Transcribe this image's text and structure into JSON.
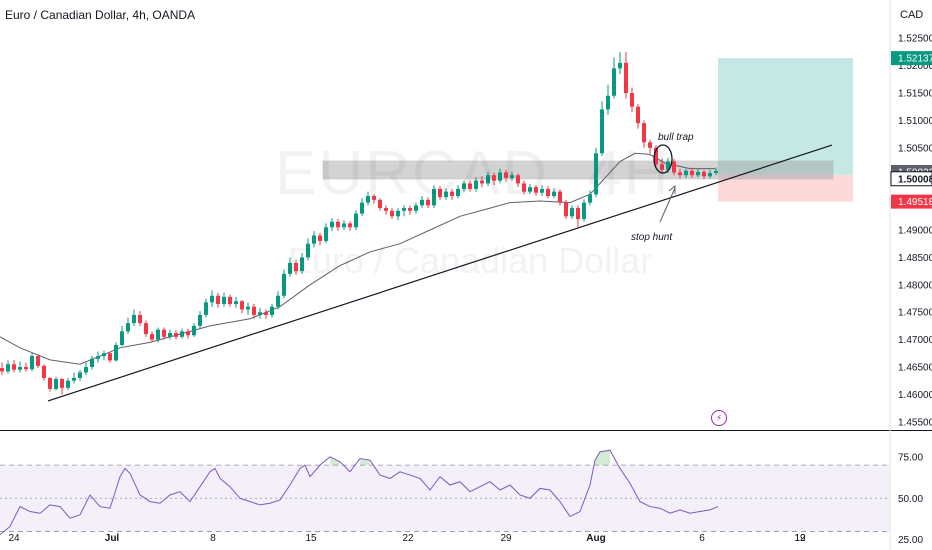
{
  "header": {
    "title": "Euro / Canadian Dollar, 4h, OANDA",
    "currency": "CAD"
  },
  "watermark": {
    "symbol": "EURCAD, 4H",
    "name": "Euro / Canadian Dollar"
  },
  "price_tags": [
    {
      "value": "1.52137",
      "color": "#089981"
    },
    {
      "value": "1.50022",
      "color": "#5d606b"
    },
    {
      "value": "1.50008",
      "color": "#131722"
    },
    {
      "value": "1.49518",
      "color": "#f23645"
    }
  ],
  "annotations": {
    "bull_trap": "bull trap",
    "stop_hunt": "stop hunt"
  },
  "colors": {
    "up": "#089981",
    "down": "#f23645",
    "ma": "#5d606b",
    "rsi": "#7e57c2",
    "target_zone": "#b2e0dc",
    "stop_zone": "#fcd0d0"
  },
  "icons": {
    "lightning": "lightning-icon"
  },
  "chart_data": [
    {
      "type": "candlestick",
      "title": "Euro / Canadian Dollar, 4h, OANDA",
      "y_axis_ticks": [
        "1.52500",
        "1.52000",
        "1.51500",
        "1.51000",
        "1.50500",
        "1.50000",
        "1.49500",
        "1.49000",
        "1.48500",
        "1.48000",
        "1.47500",
        "1.47000",
        "1.46500",
        "1.46000",
        "1.45500"
      ],
      "x_axis_ticks": [
        "24",
        "Jul",
        "8",
        "15",
        "22",
        "29",
        "Aug",
        "6",
        "12",
        "19"
      ],
      "ylim": [
        1.4535,
        1.5265
      ],
      "moving_average": [
        [
          0,
          1.4705
        ],
        [
          20,
          1.4685
        ],
        [
          50,
          1.4663
        ],
        [
          80,
          1.4655
        ],
        [
          100,
          1.467
        ],
        [
          120,
          1.4685
        ],
        [
          150,
          1.4695
        ],
        [
          180,
          1.471
        ],
        [
          210,
          1.4725
        ],
        [
          250,
          1.4738
        ],
        [
          280,
          1.476
        ],
        [
          310,
          1.48
        ],
        [
          340,
          1.4835
        ],
        [
          370,
          1.486
        ],
        [
          400,
          1.4875
        ],
        [
          430,
          1.49
        ],
        [
          460,
          1.4925
        ],
        [
          490,
          1.494
        ],
        [
          510,
          1.495
        ],
        [
          540,
          1.4953
        ],
        [
          570,
          1.495
        ],
        [
          590,
          1.4965
        ],
        [
          605,
          1.4995
        ],
        [
          620,
          1.5025
        ],
        [
          635,
          1.504
        ],
        [
          650,
          1.5038
        ],
        [
          665,
          1.5022
        ],
        [
          690,
          1.5012
        ],
        [
          715,
          1.5012
        ]
      ],
      "trendline": [
        [
          48,
          1.4588
        ],
        [
          832,
          1.5055
        ]
      ],
      "resistance_zone": {
        "y_low": 1.4993,
        "y_high": 1.5026
      },
      "position": {
        "entry": 1.50008,
        "target": 1.52137,
        "stop": 1.49518
      },
      "candles": [
        [
          0,
          1.4648,
          1.4642,
          1.4658,
          1.4635
        ],
        [
          6,
          1.4642,
          1.4655,
          1.4662,
          1.4638
        ],
        [
          12,
          1.4655,
          1.4645,
          1.4663,
          1.464
        ],
        [
          18,
          1.4645,
          1.465,
          1.466,
          1.464
        ],
        [
          24,
          1.465,
          1.4646,
          1.4658,
          1.4641
        ],
        [
          30,
          1.4646,
          1.467,
          1.4675,
          1.4642
        ],
        [
          36,
          1.467,
          1.4652,
          1.4672,
          1.4648
        ],
        [
          42,
          1.4652,
          1.463,
          1.4655,
          1.4625
        ],
        [
          48,
          1.463,
          1.461,
          1.4632,
          1.4605
        ],
        [
          54,
          1.461,
          1.4628,
          1.4632,
          1.4607
        ],
        [
          60,
          1.4628,
          1.4612,
          1.463,
          1.46
        ],
        [
          66,
          1.4612,
          1.4625,
          1.463,
          1.4608
        ],
        [
          72,
          1.4625,
          1.463,
          1.464,
          1.462
        ],
        [
          78,
          1.463,
          1.464,
          1.4645,
          1.4625
        ],
        [
          84,
          1.464,
          1.465,
          1.4658,
          1.4635
        ],
        [
          90,
          1.465,
          1.4665,
          1.467,
          1.4645
        ],
        [
          96,
          1.4665,
          1.467,
          1.4678,
          1.4658
        ],
        [
          102,
          1.467,
          1.4675,
          1.468,
          1.4662
        ],
        [
          108,
          1.4675,
          1.4662,
          1.4678,
          1.4658
        ],
        [
          114,
          1.4662,
          1.469,
          1.4695,
          1.466
        ],
        [
          120,
          1.469,
          1.4715,
          1.4725,
          1.4688
        ],
        [
          126,
          1.4715,
          1.473,
          1.474,
          1.471
        ],
        [
          132,
          1.473,
          1.4745,
          1.4755,
          1.4725
        ],
        [
          138,
          1.4745,
          1.473,
          1.4752,
          1.4725
        ],
        [
          144,
          1.473,
          1.471,
          1.4735,
          1.4705
        ],
        [
          150,
          1.471,
          1.47,
          1.4715,
          1.4695
        ],
        [
          156,
          1.47,
          1.4718,
          1.4722,
          1.4695
        ],
        [
          162,
          1.4718,
          1.4705,
          1.4722,
          1.47
        ],
        [
          168,
          1.4705,
          1.4712,
          1.4718,
          1.47
        ],
        [
          174,
          1.4712,
          1.4705,
          1.4717,
          1.47
        ],
        [
          180,
          1.4705,
          1.4715,
          1.472,
          1.4702
        ],
        [
          186,
          1.4715,
          1.4708,
          1.472,
          1.4702
        ],
        [
          192,
          1.4708,
          1.4725,
          1.473,
          1.4705
        ],
        [
          198,
          1.4725,
          1.4745,
          1.4752,
          1.472
        ],
        [
          204,
          1.4745,
          1.4768,
          1.4775,
          1.474
        ],
        [
          210,
          1.4768,
          1.478,
          1.479,
          1.476
        ],
        [
          216,
          1.478,
          1.4765,
          1.4785,
          1.4758
        ],
        [
          222,
          1.4765,
          1.4778,
          1.4786,
          1.476
        ],
        [
          228,
          1.4778,
          1.4765,
          1.4782,
          1.476
        ],
        [
          234,
          1.4765,
          1.477,
          1.4778,
          1.4758
        ],
        [
          240,
          1.477,
          1.4755,
          1.4772,
          1.4748
        ],
        [
          246,
          1.4755,
          1.476,
          1.4768,
          1.4745
        ],
        [
          252,
          1.476,
          1.4745,
          1.4765,
          1.4738
        ],
        [
          258,
          1.4745,
          1.475,
          1.4758,
          1.4738
        ],
        [
          264,
          1.475,
          1.4745,
          1.4755,
          1.4738
        ],
        [
          270,
          1.4745,
          1.476,
          1.4765,
          1.474
        ],
        [
          276,
          1.476,
          1.478,
          1.4788,
          1.4755
        ],
        [
          282,
          1.478,
          1.482,
          1.4828,
          1.4775
        ],
        [
          288,
          1.482,
          1.484,
          1.485,
          1.4815
        ],
        [
          294,
          1.484,
          1.4825,
          1.4845,
          1.4818
        ],
        [
          300,
          1.4825,
          1.485,
          1.4858,
          1.482
        ],
        [
          306,
          1.485,
          1.4875,
          1.4885,
          1.4845
        ],
        [
          312,
          1.4875,
          1.489,
          1.4898,
          1.4868
        ],
        [
          318,
          1.489,
          1.488,
          1.4895,
          1.4872
        ],
        [
          324,
          1.488,
          1.4905,
          1.4912,
          1.4876
        ],
        [
          330,
          1.4905,
          1.4915,
          1.4922,
          1.4898
        ],
        [
          336,
          1.4915,
          1.4905,
          1.492,
          1.4898
        ],
        [
          342,
          1.4905,
          1.4912,
          1.4918,
          1.49
        ],
        [
          348,
          1.4912,
          1.4905,
          1.4916,
          1.4898
        ],
        [
          354,
          1.4905,
          1.493,
          1.4936,
          1.49
        ],
        [
          360,
          1.493,
          1.495,
          1.4958,
          1.4925
        ],
        [
          366,
          1.495,
          1.4962,
          1.497,
          1.4945
        ],
        [
          372,
          1.4962,
          1.4955,
          1.4966,
          1.4948
        ],
        [
          378,
          1.4955,
          1.494,
          1.4958,
          1.4935
        ],
        [
          384,
          1.494,
          1.4935,
          1.4945,
          1.4928
        ],
        [
          390,
          1.4935,
          1.4925,
          1.494,
          1.492
        ],
        [
          396,
          1.4925,
          1.4935,
          1.494,
          1.4918
        ],
        [
          402,
          1.4935,
          1.494,
          1.4945,
          1.4925
        ],
        [
          408,
          1.494,
          1.4935,
          1.4945,
          1.4928
        ],
        [
          414,
          1.4935,
          1.4945,
          1.495,
          1.493
        ],
        [
          420,
          1.4945,
          1.4955,
          1.4962,
          1.494
        ],
        [
          426,
          1.4955,
          1.4945,
          1.496,
          1.494
        ],
        [
          432,
          1.4945,
          1.4975,
          1.4982,
          1.494
        ],
        [
          438,
          1.4975,
          1.496,
          1.498,
          1.4955
        ],
        [
          444,
          1.496,
          1.497,
          1.4976,
          1.4955
        ],
        [
          450,
          1.497,
          1.4962,
          1.4975,
          1.4955
        ],
        [
          456,
          1.4962,
          1.4975,
          1.4982,
          1.4958
        ],
        [
          462,
          1.4975,
          1.4985,
          1.499,
          1.497
        ],
        [
          468,
          1.4985,
          1.4975,
          1.499,
          1.497
        ],
        [
          474,
          1.4975,
          1.499,
          1.4996,
          1.497
        ],
        [
          480,
          1.499,
          1.4985,
          1.4998,
          1.4978
        ],
        [
          486,
          1.4985,
          1.5,
          1.5006,
          1.498
        ],
        [
          492,
          1.5,
          1.499,
          1.5005,
          1.4982
        ],
        [
          498,
          1.499,
          1.5005,
          1.5012,
          1.4985
        ],
        [
          504,
          1.5005,
          1.4995,
          1.501,
          1.4988
        ],
        [
          510,
          1.4995,
          1.5,
          1.5006,
          1.499
        ],
        [
          516,
          1.5,
          1.4985,
          1.5003,
          1.4978
        ],
        [
          522,
          1.4985,
          1.497,
          1.499,
          1.4965
        ],
        [
          528,
          1.497,
          1.4978,
          1.4984,
          1.4965
        ],
        [
          534,
          1.4978,
          1.4968,
          1.4982,
          1.4962
        ],
        [
          540,
          1.4968,
          1.4975,
          1.4982,
          1.4962
        ],
        [
          546,
          1.4975,
          1.4962,
          1.498,
          1.4958
        ],
        [
          552,
          1.4962,
          1.497,
          1.4976,
          1.4958
        ],
        [
          558,
          1.497,
          1.495,
          1.4974,
          1.4945
        ],
        [
          564,
          1.495,
          1.4925,
          1.4955,
          1.492
        ],
        [
          570,
          1.4925,
          1.494,
          1.4945,
          1.492
        ],
        [
          576,
          1.494,
          1.492,
          1.4945,
          1.4905
        ],
        [
          582,
          1.492,
          1.495,
          1.4956,
          1.4915
        ],
        [
          588,
          1.495,
          1.4965,
          1.4972,
          1.4945
        ],
        [
          594,
          1.4965,
          1.504,
          1.505,
          1.496
        ],
        [
          600,
          1.504,
          1.512,
          1.5135,
          1.5035
        ],
        [
          606,
          1.512,
          1.5145,
          1.5165,
          1.511
        ],
        [
          612,
          1.5145,
          1.5195,
          1.5215,
          1.514
        ],
        [
          618,
          1.5195,
          1.5205,
          1.5225,
          1.5185
        ],
        [
          624,
          1.5205,
          1.515,
          1.5225,
          1.514
        ],
        [
          630,
          1.515,
          1.5125,
          1.516,
          1.5115
        ],
        [
          636,
          1.5125,
          1.5095,
          1.513,
          1.5085
        ],
        [
          642,
          1.5095,
          1.506,
          1.51,
          1.505
        ],
        [
          648,
          1.506,
          1.505,
          1.5065,
          1.504
        ],
        [
          654,
          1.505,
          1.502,
          1.5055,
          1.5012
        ],
        [
          660,
          1.502,
          1.501,
          1.503,
          1.5002
        ],
        [
          666,
          1.501,
          1.5025,
          1.5032,
          1.5004
        ],
        [
          672,
          1.5025,
          1.5005,
          1.503,
          1.5
        ],
        [
          678,
          1.5005,
          1.5,
          1.5012,
          1.4994
        ],
        [
          684,
          1.5,
          1.5008,
          1.5012,
          1.4995
        ],
        [
          690,
          1.5008,
          1.5,
          1.5014,
          1.4995
        ],
        [
          696,
          1.5,
          1.5006,
          1.5012,
          1.4996
        ],
        [
          702,
          1.5006,
          1.4998,
          1.501,
          1.4993
        ],
        [
          708,
          1.4998,
          1.5004,
          1.501,
          1.4994
        ],
        [
          714,
          1.5004,
          1.5008,
          1.5014,
          1.5
        ]
      ]
    },
    {
      "type": "line",
      "name": "RSI",
      "y_axis_ticks": [
        "75.00",
        "50.00",
        "25.00"
      ],
      "ylim": [
        20,
        90
      ],
      "levels": {
        "upper": 70,
        "mid": 50,
        "lower": 30
      },
      "x": [
        0,
        10,
        20,
        30,
        40,
        50,
        60,
        70,
        80,
        90,
        100,
        110,
        120,
        125,
        130,
        140,
        150,
        160,
        170,
        180,
        190,
        200,
        210,
        215,
        220,
        230,
        240,
        250,
        260,
        270,
        280,
        290,
        300,
        305,
        310,
        320,
        330,
        340,
        350,
        360,
        370,
        380,
        390,
        400,
        410,
        420,
        430,
        440,
        450,
        460,
        470,
        480,
        490,
        500,
        510,
        520,
        530,
        540,
        550,
        560,
        570,
        580,
        590,
        595,
        600,
        610,
        620,
        630,
        640,
        650,
        660,
        670,
        680,
        690,
        700,
        710,
        718
      ],
      "values": [
        28,
        33,
        45,
        42,
        41,
        46,
        45,
        38,
        40,
        52,
        45,
        44,
        63,
        68,
        65,
        52,
        48,
        47,
        52,
        54,
        48,
        57,
        66,
        68,
        62,
        57,
        50,
        48,
        46,
        47,
        49,
        58,
        68,
        70,
        63,
        70,
        75,
        72,
        66,
        74,
        73,
        64,
        62,
        66,
        64,
        62,
        55,
        63,
        58,
        60,
        54,
        57,
        60,
        55,
        58,
        52,
        50,
        56,
        55,
        48,
        39,
        42,
        58,
        73,
        78,
        79,
        68,
        59,
        48,
        45,
        44,
        41,
        43,
        41,
        42,
        43,
        45
      ]
    }
  ]
}
